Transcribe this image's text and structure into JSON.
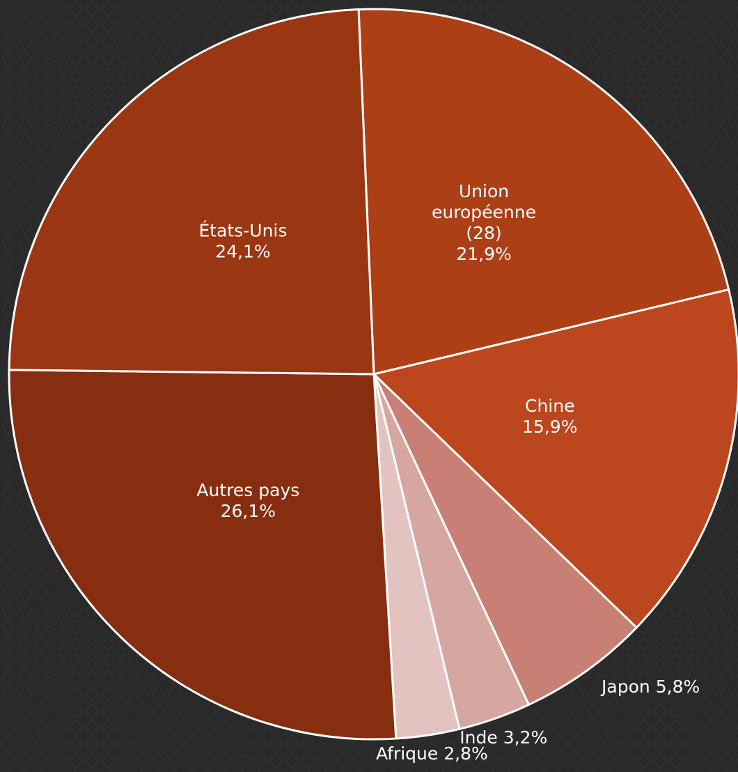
{
  "chart_data": {
    "type": "pie",
    "categories": [
      "Union européenne (28)",
      "Chine",
      "Japon",
      "Inde",
      "Afrique",
      "Autres pays",
      "États-Unis"
    ],
    "values": [
      21.9,
      15.9,
      5.8,
      3.2,
      2.8,
      26.1,
      24.1
    ],
    "value_labels": [
      "21,9%",
      "15,9%",
      "5,8%",
      "3,2%",
      "2,8%",
      "26,1%",
      "24,1%"
    ],
    "colors": [
      "#ad3f17",
      "#bc461d",
      "#c87f74",
      "#d6a6a0",
      "#e2c3c0",
      "#872e10",
      "#9b3613"
    ]
  }
}
